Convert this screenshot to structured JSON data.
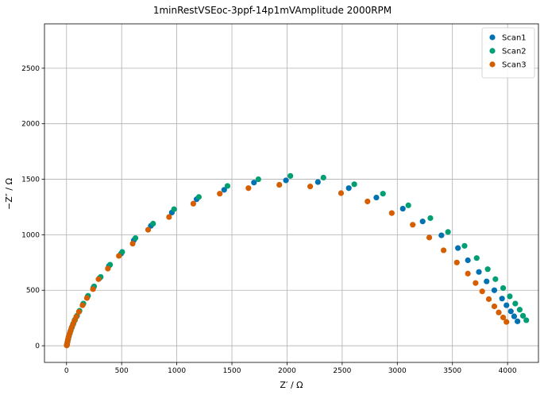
{
  "chart_data": {
    "type": "scatter",
    "title": "1minRestVSEoc-3ppf-14p1mVAmplitude 2000RPM",
    "xlabel": "Z′ / Ω",
    "ylabel": "−Z″ / Ω",
    "xlim": [
      -200,
      4280
    ],
    "ylim": [
      -150,
      2900
    ],
    "xticks": [
      0,
      500,
      1000,
      1500,
      2000,
      2500,
      3000,
      3500,
      4000
    ],
    "yticks": [
      0,
      500,
      1000,
      1500,
      2000,
      2500
    ],
    "grid": true,
    "legend_position": "top-right",
    "series": [
      {
        "name": "Scan1",
        "color": "#0072b2",
        "points": [
          [
            4090,
            220
          ],
          [
            4060,
            265
          ],
          [
            4030,
            310
          ],
          [
            3990,
            365
          ],
          [
            3950,
            425
          ],
          [
            3880,
            500
          ],
          [
            3810,
            580
          ],
          [
            3740,
            665
          ],
          [
            3640,
            770
          ],
          [
            3550,
            880
          ],
          [
            3400,
            995
          ],
          [
            3230,
            1120
          ],
          [
            3050,
            1235
          ],
          [
            2810,
            1335
          ],
          [
            2560,
            1420
          ],
          [
            2280,
            1475
          ],
          [
            1990,
            1490
          ],
          [
            1700,
            1470
          ],
          [
            1430,
            1405
          ],
          [
            1180,
            1320
          ],
          [
            955,
            1200
          ],
          [
            765,
            1080
          ],
          [
            610,
            950
          ],
          [
            495,
            830
          ],
          [
            385,
            720
          ],
          [
            300,
            610
          ],
          [
            245,
            525
          ],
          [
            190,
            440
          ],
          [
            150,
            375
          ],
          [
            115,
            310
          ],
          [
            92,
            265
          ],
          [
            75,
            230
          ],
          [
            60,
            195
          ],
          [
            48,
            165
          ],
          [
            37,
            135
          ],
          [
            28,
            108
          ],
          [
            20,
            82
          ],
          [
            14,
            58
          ],
          [
            9,
            35
          ],
          [
            5,
            15
          ],
          [
            3,
            5
          ]
        ]
      },
      {
        "name": "Scan2",
        "color": "#009e73",
        "points": [
          [
            4170,
            230
          ],
          [
            4140,
            270
          ],
          [
            4110,
            325
          ],
          [
            4070,
            380
          ],
          [
            4020,
            445
          ],
          [
            3960,
            520
          ],
          [
            3890,
            600
          ],
          [
            3820,
            690
          ],
          [
            3720,
            790
          ],
          [
            3610,
            900
          ],
          [
            3460,
            1025
          ],
          [
            3300,
            1150
          ],
          [
            3100,
            1265
          ],
          [
            2870,
            1370
          ],
          [
            2610,
            1455
          ],
          [
            2330,
            1515
          ],
          [
            2030,
            1530
          ],
          [
            1740,
            1500
          ],
          [
            1460,
            1440
          ],
          [
            1200,
            1340
          ],
          [
            975,
            1230
          ],
          [
            785,
            1100
          ],
          [
            625,
            970
          ],
          [
            505,
            845
          ],
          [
            395,
            730
          ],
          [
            310,
            620
          ],
          [
            250,
            535
          ],
          [
            195,
            450
          ],
          [
            153,
            380
          ],
          [
            118,
            315
          ],
          [
            95,
            270
          ],
          [
            77,
            235
          ],
          [
            62,
            200
          ],
          [
            50,
            170
          ],
          [
            39,
            140
          ],
          [
            30,
            112
          ],
          [
            22,
            86
          ],
          [
            15,
            62
          ],
          [
            10,
            38
          ],
          [
            6,
            18
          ],
          [
            3,
            6
          ]
        ]
      },
      {
        "name": "Scan3",
        "color": "#d55e00",
        "points": [
          [
            3990,
            215
          ],
          [
            3960,
            255
          ],
          [
            3920,
            300
          ],
          [
            3880,
            355
          ],
          [
            3830,
            420
          ],
          [
            3770,
            490
          ],
          [
            3710,
            565
          ],
          [
            3640,
            650
          ],
          [
            3540,
            750
          ],
          [
            3420,
            860
          ],
          [
            3290,
            975
          ],
          [
            3140,
            1090
          ],
          [
            2950,
            1195
          ],
          [
            2730,
            1300
          ],
          [
            2490,
            1375
          ],
          [
            2210,
            1435
          ],
          [
            1930,
            1450
          ],
          [
            1650,
            1420
          ],
          [
            1390,
            1370
          ],
          [
            1150,
            1280
          ],
          [
            930,
            1160
          ],
          [
            740,
            1045
          ],
          [
            600,
            920
          ],
          [
            475,
            810
          ],
          [
            375,
            695
          ],
          [
            290,
            600
          ],
          [
            240,
            510
          ],
          [
            185,
            430
          ],
          [
            145,
            365
          ],
          [
            112,
            305
          ],
          [
            88,
            260
          ],
          [
            72,
            225
          ],
          [
            57,
            190
          ],
          [
            45,
            160
          ],
          [
            35,
            130
          ],
          [
            26,
            103
          ],
          [
            18,
            78
          ],
          [
            12,
            55
          ],
          [
            8,
            32
          ],
          [
            4,
            13
          ],
          [
            2,
            3
          ]
        ]
      }
    ]
  }
}
